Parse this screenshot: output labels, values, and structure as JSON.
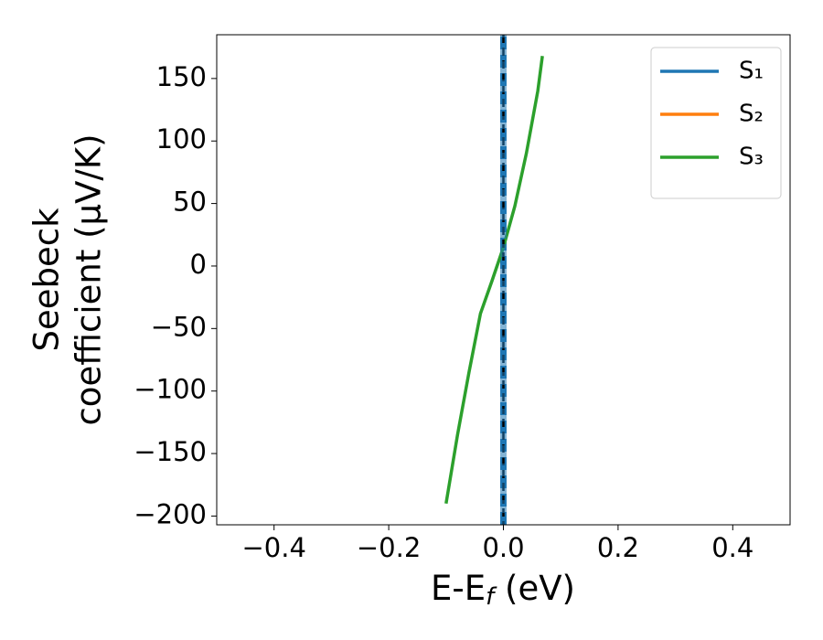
{
  "chart_data": {
    "type": "line",
    "xlabel": [
      "E-E",
      "f",
      " (eV)"
    ],
    "ylabel": [
      "Seebeck",
      "coefficient  (μV/K)"
    ],
    "xlim": [
      -0.5,
      0.5
    ],
    "ylim": [
      -207,
      185
    ],
    "xticks": [
      {
        "value": -0.4,
        "label": "−0.4"
      },
      {
        "value": -0.2,
        "label": "−0.2"
      },
      {
        "value": 0.0,
        "label": "0.0"
      },
      0.2,
      0.4
    ],
    "yticks": [
      {
        "value": -200,
        "label": "−200"
      },
      {
        "value": -150,
        "label": "−150"
      },
      {
        "value": -100,
        "label": "−100"
      },
      {
        "value": -50,
        "label": "−50"
      },
      0,
      50,
      100,
      150
    ],
    "vline": {
      "x": 0,
      "color": "#000000"
    },
    "legend": "upper right",
    "series": [
      {
        "name": "S₁",
        "color": "#1f77b4",
        "dashed": true,
        "x": [
          0,
          0
        ],
        "values": [
          -207,
          185
        ]
      },
      {
        "name": "S₂",
        "color": "#ff7f0e",
        "dashed": false,
        "x": [],
        "values": []
      },
      {
        "name": "S₃",
        "color": "#2ca02c",
        "dashed": false,
        "x": [
          -0.1,
          -0.08,
          -0.06,
          -0.04,
          -0.02,
          0,
          0.02,
          0.04,
          0.06,
          0.068
        ],
        "values": [
          -190,
          -135,
          -85,
          -38,
          -12,
          15,
          48,
          90,
          140,
          168
        ]
      }
    ]
  }
}
